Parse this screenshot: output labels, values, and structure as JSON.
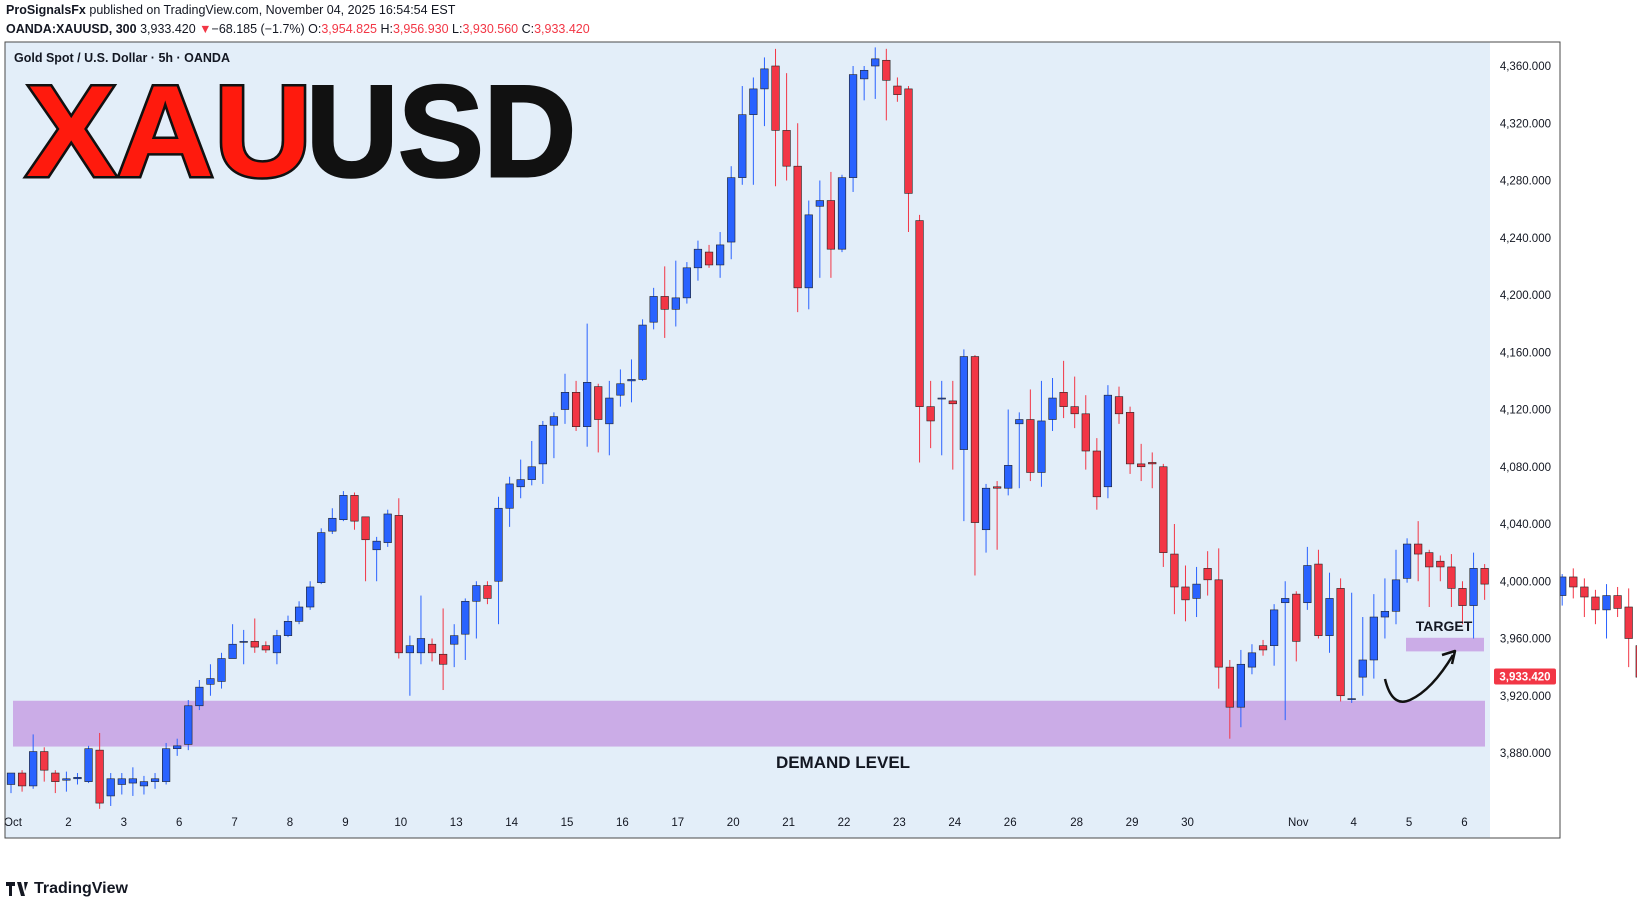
{
  "header": {
    "author": "ProSignalsFx",
    "published_text": "published on TradingView.com, November 04, 2025 16:54:54 EST",
    "symbol": "OANDA:XAUUSD, 300",
    "last": "3,933.420",
    "change_arrow": "▼",
    "change": "−68.185 (−1.7%)",
    "o_label": "O:",
    "o": "3,954.825",
    "h_label": "H:",
    "h": "3,956.930",
    "l_label": "L:",
    "l": "3,930.560",
    "c_label": "C:",
    "c": "3,933.420"
  },
  "overlay": {
    "series_label": "Gold Spot / U.S. Dollar · 5h · OANDA",
    "big_title_red": "XAU",
    "big_title_black": "USD",
    "demand_label": "DEMAND LEVEL",
    "target_label": "TARGET",
    "price_tag": "3,933.420"
  },
  "footer": {
    "brand": "TradingView"
  },
  "colors": {
    "up": "#2962ff",
    "down": "#f23645",
    "bg": "#e3eef9",
    "zone": "#c9a8e6",
    "title_red": "#ff1a0d"
  },
  "chart_data": {
    "type": "candlestick",
    "title": "Gold Spot / U.S. Dollar · 5h · OANDA",
    "ylim": [
      3855,
      4375
    ],
    "y_ticks": [
      3880,
      3920,
      3960,
      4000,
      4040,
      4080,
      4120,
      4160,
      4200,
      4240,
      4280,
      4320,
      4360
    ],
    "y_tick_labels": [
      "3,880.000",
      "3,920.000",
      "3,960.000",
      "4,000.000",
      "4,040.000",
      "4,080.000",
      "4,120.000",
      "4,160.000",
      "4,200.000",
      "4,240.000",
      "4,280.000",
      "4,320.000",
      "4,360.000"
    ],
    "x_ticks": [
      {
        "label": "Oct",
        "candle": 0
      },
      {
        "label": "2",
        "candle": 5
      },
      {
        "label": "3",
        "candle": 10
      },
      {
        "label": "6",
        "candle": 15
      },
      {
        "label": "7",
        "candle": 20
      },
      {
        "label": "8",
        "candle": 25
      },
      {
        "label": "9",
        "candle": 30
      },
      {
        "label": "10",
        "candle": 35
      },
      {
        "label": "13",
        "candle": 40
      },
      {
        "label": "14",
        "candle": 45
      },
      {
        "label": "15",
        "candle": 50
      },
      {
        "label": "16",
        "candle": 55
      },
      {
        "label": "17",
        "candle": 60
      },
      {
        "label": "20",
        "candle": 65
      },
      {
        "label": "21",
        "candle": 70
      },
      {
        "label": "22",
        "candle": 75
      },
      {
        "label": "23",
        "candle": 80
      },
      {
        "label": "24",
        "candle": 85
      },
      {
        "label": "26",
        "candle": 90
      },
      {
        "label": "28",
        "candle": 96
      },
      {
        "label": "29",
        "candle": 101
      },
      {
        "label": "30",
        "candle": 106
      },
      {
        "label": "Nov",
        "candle": 116
      },
      {
        "label": "4",
        "candle": 121
      },
      {
        "label": "5",
        "candle": 126
      },
      {
        "label": "6",
        "candle": 131
      }
    ],
    "candles": [
      [
        3858,
        3866,
        3852,
        3866
      ],
      [
        3866,
        3857,
        3853,
        3868
      ],
      [
        3857,
        3881,
        3855,
        3893
      ],
      [
        3881,
        3868,
        3860,
        3884
      ],
      [
        3866,
        3860,
        3852,
        3868
      ],
      [
        3861,
        3862,
        3853,
        3867
      ],
      [
        3862,
        3863,
        3858,
        3866
      ],
      [
        3860,
        3883,
        3859,
        3885
      ],
      [
        3882,
        3845,
        3841,
        3894
      ],
      [
        3850,
        3862,
        3843,
        3866
      ],
      [
        3858,
        3862,
        3851,
        3866
      ],
      [
        3859,
        3862,
        3850,
        3870
      ],
      [
        3857,
        3860,
        3851,
        3864
      ],
      [
        3860,
        3862,
        3855,
        3866
      ],
      [
        3860,
        3883,
        3858,
        3887
      ],
      [
        3883,
        3885,
        3878,
        3890
      ],
      [
        3886,
        3913,
        3882,
        3917
      ],
      [
        3913,
        3926,
        3910,
        3931
      ],
      [
        3928,
        3932,
        3920,
        3942
      ],
      [
        3930,
        3946,
        3925,
        3950
      ],
      [
        3946,
        3956,
        3950,
        3970
      ],
      [
        3958,
        3958,
        3942,
        3966
      ],
      [
        3958,
        3954,
        3950,
        3974
      ],
      [
        3955,
        3952,
        3950,
        3958
      ],
      [
        3950,
        3962,
        3942,
        3966
      ],
      [
        3962,
        3972,
        3961,
        3976
      ],
      [
        3972,
        3982,
        3970,
        3986
      ],
      [
        3982,
        3996,
        3980,
        4000
      ],
      [
        3999,
        4034,
        3998,
        4037
      ],
      [
        4035,
        4044,
        4033,
        4051
      ],
      [
        4043,
        4060,
        4042,
        4063
      ],
      [
        4060,
        4042,
        4036,
        4062
      ],
      [
        4045,
        4029,
        4000,
        4045
      ],
      [
        4022,
        4028,
        4000,
        4031
      ],
      [
        4027,
        4047,
        4024,
        4050
      ],
      [
        4046,
        3950,
        3946,
        4058
      ],
      [
        3950,
        3955,
        3920,
        3962
      ],
      [
        3950,
        3960,
        3942,
        3990
      ],
      [
        3956,
        3950,
        3944,
        3960
      ],
      [
        3949,
        3942,
        3924,
        3981
      ],
      [
        3956,
        3962,
        3940,
        3970
      ],
      [
        3963,
        3986,
        3945,
        3988
      ],
      [
        3986,
        3997,
        3960,
        4000
      ],
      [
        3997,
        3988,
        3984,
        4000
      ],
      [
        4000,
        4051,
        3970,
        4059
      ],
      [
        4051,
        4068,
        4038,
        4073
      ],
      [
        4066,
        4071,
        4058,
        4085
      ],
      [
        4071,
        4080,
        4067,
        4098
      ],
      [
        4082,
        4109,
        4068,
        4112
      ],
      [
        4109,
        4115,
        4086,
        4118
      ],
      [
        4120,
        4132,
        4110,
        4145
      ],
      [
        4132,
        4108,
        4105,
        4140
      ],
      [
        4108,
        4139,
        4094,
        4180
      ],
      [
        4136,
        4113,
        4090,
        4138
      ],
      [
        4110,
        4128,
        4088,
        4140
      ],
      [
        4130,
        4138,
        4122,
        4148
      ],
      [
        4140,
        4141,
        4125,
        4155
      ],
      [
        4141,
        4179,
        4140,
        4183
      ],
      [
        4181,
        4199,
        4176,
        4205
      ],
      [
        4199,
        4190,
        4170,
        4220
      ],
      [
        4190,
        4198,
        4178,
        4224
      ],
      [
        4198,
        4219,
        4194,
        4223
      ],
      [
        4219,
        4232,
        4210,
        4238
      ],
      [
        4230,
        4221,
        4219,
        4235
      ],
      [
        4221,
        4235,
        4212,
        4244
      ],
      [
        4237,
        4282,
        4225,
        4290
      ],
      [
        4282,
        4326,
        4277,
        4346
      ],
      [
        4326,
        4344,
        4277,
        4352
      ],
      [
        4344,
        4358,
        4318,
        4366
      ],
      [
        4360,
        4315,
        4276,
        4372
      ],
      [
        4315,
        4290,
        4280,
        4355
      ],
      [
        4290,
        4205,
        4188,
        4320
      ],
      [
        4205,
        4256,
        4190,
        4266
      ],
      [
        4262,
        4266,
        4212,
        4280
      ],
      [
        4266,
        4232,
        4212,
        4286
      ],
      [
        4232,
        4282,
        4230,
        4284
      ],
      [
        4282,
        4354,
        4272,
        4360
      ],
      [
        4351,
        4357,
        4336,
        4360
      ],
      [
        4360,
        4365,
        4337,
        4373
      ],
      [
        4364,
        4350,
        4322,
        4372
      ],
      [
        4346,
        4340,
        4335,
        4352
      ],
      [
        4344,
        4271,
        4244,
        4346
      ],
      [
        4252,
        4122,
        4083,
        4256
      ],
      [
        4122,
        4112,
        4093,
        4140
      ],
      [
        4128,
        4128,
        4088,
        4140
      ],
      [
        4126,
        4124,
        4078,
        4140
      ],
      [
        4092,
        4157,
        4042,
        4162
      ],
      [
        4157,
        4041,
        4004,
        4158
      ],
      [
        4036,
        4065,
        4020,
        4068
      ],
      [
        4066,
        4065,
        4022,
        4070
      ],
      [
        4065,
        4081,
        4060,
        4120
      ],
      [
        4110,
        4113,
        4065,
        4118
      ],
      [
        4113,
        4076,
        4070,
        4134
      ],
      [
        4076,
        4112,
        4066,
        4140
      ],
      [
        4113,
        4128,
        4105,
        4142
      ],
      [
        4132,
        4122,
        4114,
        4154
      ],
      [
        4122,
        4117,
        4107,
        4143
      ],
      [
        4117,
        4091,
        4078,
        4130
      ],
      [
        4091,
        4059,
        4050,
        4100
      ],
      [
        4066,
        4130,
        4058,
        4137
      ],
      [
        4129,
        4117,
        4110,
        4136
      ],
      [
        4118,
        4082,
        4075,
        4122
      ],
      [
        4082,
        4080,
        4070,
        4096
      ],
      [
        4083,
        4082,
        4065,
        4090
      ],
      [
        4080,
        4020,
        4010,
        4082
      ],
      [
        4019,
        3996,
        3977,
        4040
      ],
      [
        3996,
        3987,
        3972,
        4011
      ],
      [
        3988,
        3998,
        3975,
        4010
      ],
      [
        4009,
        4001,
        3990,
        4021
      ],
      [
        4001,
        3940,
        3925,
        4023
      ],
      [
        3940,
        3912,
        3890,
        3945
      ],
      [
        3912,
        3942,
        3898,
        3952
      ],
      [
        3940,
        3950,
        3935,
        3956
      ],
      [
        3955,
        3952,
        3948,
        3959
      ],
      [
        3955,
        3980,
        3941,
        3984
      ],
      [
        3985,
        3988,
        3903,
        4000
      ],
      [
        3991,
        3958,
        3944,
        3993
      ],
      [
        3985,
        4011,
        3980,
        4024
      ],
      [
        4012,
        3962,
        3960,
        4022
      ],
      [
        3962,
        3988,
        3950,
        4006
      ],
      [
        3995,
        3920,
        3916,
        4002
      ],
      [
        3918,
        3918,
        3915,
        3992
      ],
      [
        3933,
        3945,
        3920,
        3975
      ],
      [
        3945,
        3975,
        3932,
        3991
      ],
      [
        3975,
        3979,
        3960,
        4002
      ],
      [
        3979,
        4001,
        3970,
        4022
      ],
      [
        4002,
        4026,
        3999,
        4030
      ],
      [
        4026,
        4019,
        4000,
        4042
      ],
      [
        4020,
        4010,
        3982,
        4022
      ],
      [
        4014,
        4010,
        4000,
        4018
      ],
      [
        4010,
        3995,
        3982,
        4019
      ],
      [
        3995,
        3983,
        3970,
        4000
      ],
      [
        3983,
        4009,
        3960,
        4020
      ],
      [
        4009,
        3998,
        3987,
        4012
      ],
      [
        3998,
        4020,
        3992,
        4025
      ],
      [
        4020,
        3998,
        3983,
        4021
      ],
      [
        3998,
        4013,
        3994,
        4018
      ],
      [
        4013,
        3996,
        3980,
        4027
      ],
      [
        3996,
        4014,
        3988,
        4016
      ],
      [
        4014,
        3990,
        3987,
        4020
      ],
      [
        3990,
        4003,
        3983,
        4005
      ],
      [
        4003,
        3996,
        3988,
        4009
      ],
      [
        3996,
        3989,
        3975,
        4002
      ],
      [
        3989,
        3980,
        3970,
        3994
      ],
      [
        3980,
        3990,
        3960,
        3998
      ],
      [
        3990,
        3981,
        3975,
        3996
      ],
      [
        3982,
        3960,
        3940,
        3995
      ],
      [
        3955,
        3933,
        3930,
        3957
      ]
    ]
  }
}
